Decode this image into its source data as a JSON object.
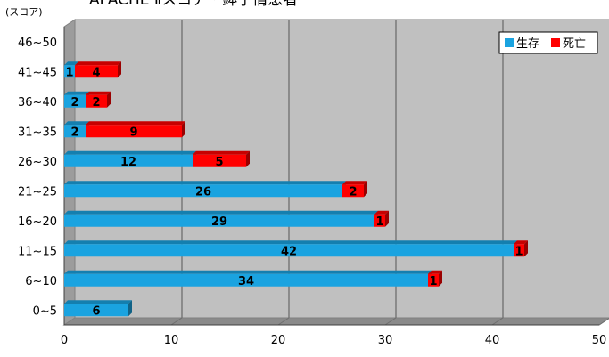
{
  "chart_data": {
    "type": "bar",
    "orientation": "horizontal",
    "stacked": true,
    "title": "APACHE Ⅱスコア・鉢⼦情患者",
    "unit_label": "(スコア)",
    "categories": [
      "0~5",
      "6~10",
      "11~15",
      "16~20",
      "21~25",
      "26~30",
      "31~35",
      "36~40",
      "41~45",
      "46~50"
    ],
    "series": [
      {
        "name": "生存",
        "color": "#1aa3e0",
        "values": [
          6,
          34,
          42,
          29,
          26,
          12,
          2,
          2,
          1,
          0
        ]
      },
      {
        "name": "死亡",
        "color": "#ff0000",
        "values": [
          0,
          1,
          1,
          1,
          2,
          5,
          9,
          2,
          4,
          0
        ]
      }
    ],
    "xlim": [
      0,
      50
    ],
    "xticks": [
      "0",
      "10",
      "20",
      "30",
      "40",
      "50"
    ],
    "grid": true,
    "legend_position": "top-right",
    "plot_background": "#c0c0c0"
  }
}
